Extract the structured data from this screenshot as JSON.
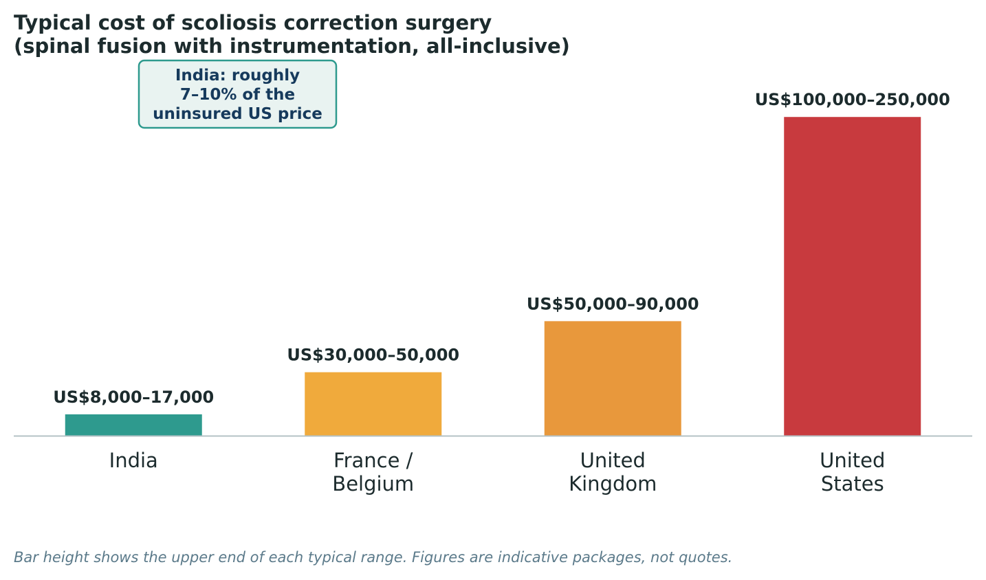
{
  "title": {
    "line1": "Typical cost of scoliosis correction surgery",
    "line2": "(spinal fusion with instrumentation, all-inclusive)"
  },
  "annotation": {
    "lines": [
      "India: roughly",
      "7–10% of the",
      "uninsured US price"
    ],
    "border_color": "#2e9a8e",
    "fill_color": "#e9f3f1",
    "text_color": "#163a5c"
  },
  "footnote": "Bar height shows the upper end of each typical range. Figures are indicative packages, not quotes.",
  "chart_data": {
    "type": "bar",
    "categories": [
      [
        "India"
      ],
      [
        "France /",
        "Belgium"
      ],
      [
        "United",
        "Kingdom"
      ],
      [
        "United",
        "States"
      ]
    ],
    "values": [
      17000,
      50000,
      90000,
      250000
    ],
    "range_low": [
      8000,
      30000,
      50000,
      100000
    ],
    "data_labels": [
      "US$8,000–17,000",
      "US$30,000–50,000",
      "US$50,000–90,000",
      "US$100,000–250,000"
    ],
    "colors": [
      "#2e9a8e",
      "#f0aa3c",
      "#e8983c",
      "#c83a3e"
    ],
    "ylim": [
      0,
      262500
    ],
    "grid": false,
    "legend": "none",
    "axis_color": "#b4c2c6",
    "label_color": "#1c2b2d",
    "tick_color": "#1c2b2d"
  }
}
